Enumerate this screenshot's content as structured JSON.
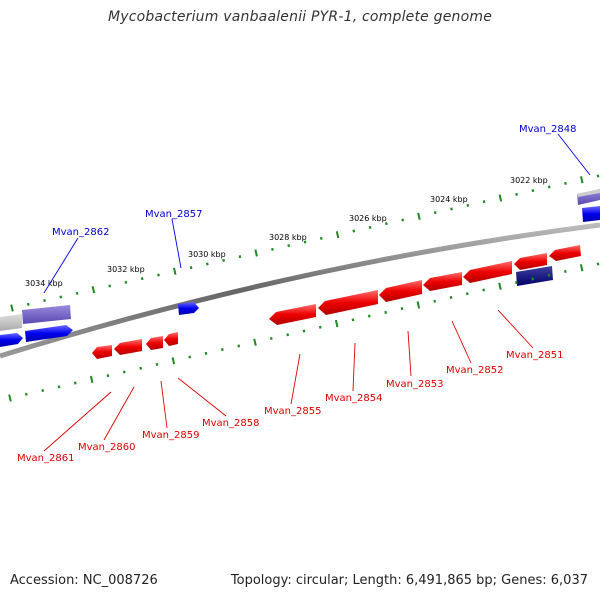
{
  "title": "Mycobacterium vanbaalenii PYR-1, complete genome",
  "accession": "Accession: NC_008726",
  "summary": "Topology: circular; Length: 6,491,865 bp; Genes: 6,037",
  "colors": {
    "forward_gene": "#0000ee",
    "reverse_gene": "#ee0000",
    "backbone": "#777777",
    "ticks": "#228822",
    "forward_label": "#0000cc",
    "reverse_label": "#dd0000"
  },
  "scale_labels": [
    "3022 kbp",
    "3024 kbp",
    "3026 kbp",
    "3028 kbp",
    "3030 kbp",
    "3032 kbp",
    "3034 kbp"
  ],
  "forward_gene_labels": [
    "Mvan_2848",
    "Mvan_2857",
    "Mvan_2862"
  ],
  "reverse_gene_labels": [
    "Mvan_2851",
    "Mvan_2852",
    "Mvan_2853",
    "Mvan_2854",
    "Mvan_2855",
    "Mvan_2858",
    "Mvan_2859",
    "Mvan_2860",
    "Mvan_2861"
  ]
}
